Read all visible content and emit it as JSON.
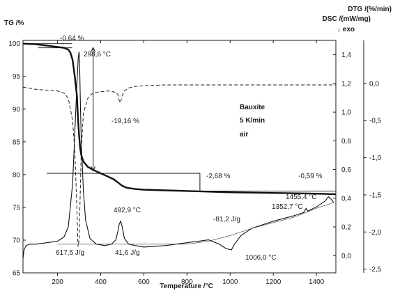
{
  "chart_data": {
    "type": "line",
    "title": "",
    "xlabel": "Temperature /°C",
    "xlim": [
      40,
      1490
    ],
    "xticks": [
      200,
      400,
      600,
      800,
      1000,
      1200,
      1400
    ],
    "axes": {
      "tg": {
        "label": "TG /%",
        "lim": [
          65,
          100.5
        ],
        "ticks": [
          65,
          70,
          75,
          80,
          85,
          90,
          95,
          100
        ]
      },
      "dsc": {
        "label": "DSC /(mW/mg)",
        "direction": "↓ exo",
        "lim": [
          -0.12,
          1.5
        ],
        "ticks": [
          "0,0",
          "0,2",
          "0,4",
          "0,6",
          "0,8",
          "1,0",
          "1,2",
          "1,4"
        ],
        "tick_values": [
          0.0,
          0.2,
          0.4,
          0.6,
          0.8,
          1.0,
          1.2,
          1.4
        ]
      },
      "dtg": {
        "label": "DTG /(%/min)",
        "lim": [
          -2.55,
          0.58
        ],
        "ticks": [
          "0,0",
          "-0,5",
          "-1,0",
          "-1,5",
          "-2,0",
          "-2,5"
        ],
        "tick_values": [
          0.0,
          -0.5,
          -1.0,
          -1.5,
          -2.0,
          -2.5
        ]
      }
    },
    "legend_text": [
      "Bauxite",
      "5 K/min",
      "air"
    ],
    "series": [
      {
        "role": "TG",
        "axis": "tg",
        "style": "solid-thick",
        "x": [
          40,
          100,
          150,
          200,
          230,
          250,
          260,
          270,
          280,
          290,
          295,
          300,
          305,
          310,
          320,
          340,
          360,
          380,
          400,
          420,
          440,
          460,
          480,
          500,
          520,
          560,
          600,
          700,
          800,
          860,
          1000,
          1200,
          1400,
          1490
        ],
        "y": [
          100,
          99.9,
          99.7,
          99.5,
          99.36,
          99.1,
          98.6,
          97.5,
          95.0,
          92.0,
          88.5,
          86.0,
          84.0,
          83.0,
          82.0,
          81.2,
          80.8,
          80.5,
          80.2,
          79.9,
          79.6,
          79.3,
          78.8,
          78.3,
          78.0,
          77.8,
          77.7,
          77.6,
          77.5,
          77.45,
          77.3,
          77.2,
          77.1,
          77.0
        ]
      },
      {
        "role": "DTG",
        "axis": "dtg",
        "style": "dashed",
        "x": [
          40,
          100,
          150,
          200,
          230,
          250,
          270,
          280,
          290,
          295,
          300,
          305,
          310,
          320,
          340,
          360,
          380,
          400,
          440,
          470,
          480,
          485,
          490,
          495,
          500,
          510,
          530,
          560,
          600,
          700,
          800,
          900,
          1000,
          1100,
          1200,
          1300,
          1400,
          1490
        ],
        "y": [
          -0.05,
          -0.08,
          -0.09,
          -0.1,
          -0.13,
          -0.2,
          -0.5,
          -0.9,
          -1.7,
          -2.2,
          -2.1,
          -1.5,
          -0.9,
          -0.4,
          -0.2,
          -0.14,
          -0.12,
          -0.11,
          -0.1,
          -0.12,
          -0.15,
          -0.22,
          -0.26,
          -0.22,
          -0.16,
          -0.1,
          -0.06,
          -0.04,
          -0.03,
          -0.02,
          -0.02,
          -0.02,
          -0.02,
          -0.02,
          -0.02,
          -0.02,
          -0.02,
          -0.02
        ]
      },
      {
        "role": "DSC",
        "axis": "dsc",
        "style": "solid",
        "x": [
          40,
          45,
          55,
          70,
          100,
          150,
          200,
          230,
          250,
          270,
          280,
          290,
          296,
          300,
          303,
          306,
          310,
          320,
          330,
          350,
          380,
          420,
          450,
          470,
          480,
          486,
          492.9,
          500,
          510,
          530,
          560,
          600,
          700,
          800,
          900,
          950,
          980,
          1006,
          1020,
          1050,
          1100,
          1200,
          1300,
          1340,
          1352.7,
          1360,
          1400,
          1440,
          1455.4,
          1470,
          1480
        ],
        "y": [
          -0.02,
          0.04,
          0.07,
          0.08,
          0.08,
          0.09,
          0.1,
          0.13,
          0.2,
          0.5,
          0.85,
          1.2,
          1.38,
          1.42,
          1.3,
          1.05,
          0.8,
          0.45,
          0.25,
          0.12,
          0.08,
          0.07,
          0.08,
          0.11,
          0.17,
          0.22,
          0.24,
          0.2,
          0.12,
          0.08,
          0.07,
          0.06,
          0.07,
          0.09,
          0.11,
          0.08,
          0.05,
          0.04,
          0.08,
          0.14,
          0.19,
          0.24,
          0.28,
          0.3,
          0.33,
          0.31,
          0.34,
          0.38,
          0.41,
          0.39,
          0.37
        ]
      },
      {
        "role": "DSC-baseline",
        "axis": "dsc",
        "style": "thin",
        "x": [
          200,
          400,
          600,
          800,
          900,
          1000,
          1100,
          1200,
          1300,
          1400,
          1480
        ],
        "y": [
          0.08,
          0.08,
          0.08,
          0.08,
          0.1,
          0.14,
          0.19,
          0.23,
          0.27,
          0.33,
          0.37
        ]
      }
    ],
    "annotations": [
      {
        "text": "-0,64 %"
      },
      {
        "text": "298,6 °C"
      },
      {
        "text": "-19,16 %"
      },
      {
        "text": "-2,68 %"
      },
      {
        "text": "-0,59 %"
      },
      {
        "text": "492,9 °C"
      },
      {
        "text": "617,5 J/g"
      },
      {
        "text": "41,6 J/g"
      },
      {
        "text": "-81,2 J/g"
      },
      {
        "text": "1006,0 °C"
      },
      {
        "text": "1352,7 °C"
      },
      {
        "text": "1455,4 °C"
      }
    ]
  }
}
